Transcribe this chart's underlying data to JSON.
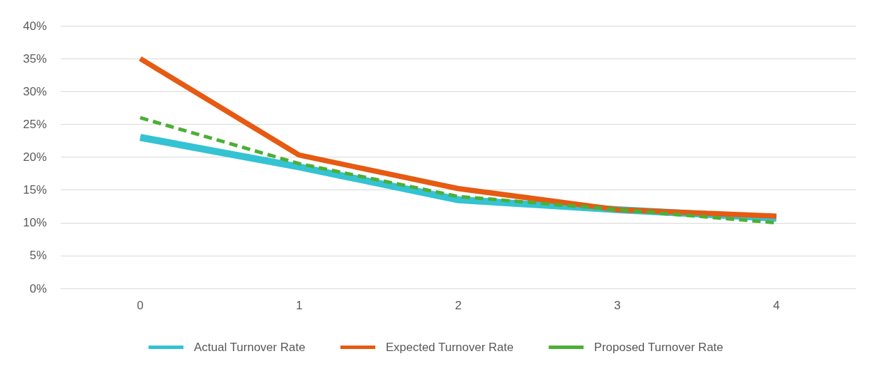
{
  "chart_data": {
    "type": "line",
    "categories": [
      "0",
      "1",
      "2",
      "3",
      "4"
    ],
    "series": [
      {
        "name": "Actual Turnover Rate",
        "color": "#33c3d3",
        "values": [
          23,
          18.5,
          13.5,
          12,
          10.7
        ],
        "line_style": "solid"
      },
      {
        "name": "Expected Turnover Rate",
        "color": "#e65a12",
        "values": [
          35,
          20.3,
          15.2,
          12,
          11
        ],
        "line_style": "solid"
      },
      {
        "name": "Proposed Turnover Rate",
        "color": "#4caf36",
        "values": [
          26,
          19,
          14,
          12,
          10
        ],
        "line_style": "dashed"
      }
    ],
    "ylim": [
      0,
      40
    ],
    "yticks": [
      {
        "value": 0,
        "label": "0%"
      },
      {
        "value": 5,
        "label": "5%"
      },
      {
        "value": 10,
        "label": "10%"
      },
      {
        "value": 15,
        "label": "15%"
      },
      {
        "value": 20,
        "label": "20%"
      },
      {
        "value": 25,
        "label": "25%"
      },
      {
        "value": 30,
        "label": "30%"
      },
      {
        "value": 35,
        "label": "35%"
      },
      {
        "value": 40,
        "label": "40%"
      }
    ],
    "grid": "y",
    "legend": "bottom",
    "marker": "none"
  }
}
